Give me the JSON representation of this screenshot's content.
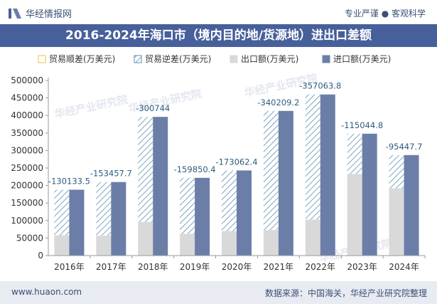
{
  "header": {
    "brand": "华经情报网",
    "tagline": "专业严谨 ● 客观科学"
  },
  "footer": {
    "url": "www.huaon.com",
    "source": "数据来源：中国海关，华经产业研究院整理"
  },
  "watermark": "华经产业研究院",
  "colors": {
    "surplus": "#e8c24a",
    "deficit": "#5b8fb0",
    "export": "#d9d9d9",
    "import": "#6b7ea8",
    "title_bg": "#47609b"
  },
  "chart_data": {
    "type": "bar",
    "title": "2016-2024年海口市（境内目的地/货源地）进出口差额",
    "categories": [
      "2016年",
      "2017年",
      "2018年",
      "2019年",
      "2020年",
      "2021年",
      "2022年",
      "2023年",
      "2024年"
    ],
    "series": [
      {
        "name": "贸易顺差(万美元)",
        "values": [
          null,
          null,
          null,
          null,
          null,
          null,
          null,
          null,
          null
        ]
      },
      {
        "name": "贸易逆差(万美元)",
        "values": [
          -130133.5,
          -153457.7,
          -300744,
          -159850.4,
          -173062.4,
          -340209.2,
          -357063.8,
          -115044.8,
          -95447.7
        ]
      },
      {
        "name": "出口额(万美元)",
        "values": [
          58000,
          57000,
          96000,
          62000,
          70000,
          73000,
          103000,
          233000,
          192000
        ]
      },
      {
        "name": "进口额(万美元)",
        "values": [
          188000,
          210000,
          396000,
          222000,
          243000,
          413000,
          460000,
          348000,
          287000
        ]
      }
    ],
    "data_labels": [
      "-130133.5",
      "-153457.7",
      "-300744",
      "-159850.4",
      "-173062.4",
      "-340209.2",
      "-357063.8",
      "-115044.8",
      "-95447.7"
    ],
    "ylim": [
      0,
      500000
    ],
    "yticks": [
      "0",
      "50000",
      "100000",
      "150000",
      "200000",
      "250000",
      "300000",
      "350000",
      "400000",
      "450000",
      "500000"
    ],
    "legend_position": "top",
    "grid": false
  }
}
